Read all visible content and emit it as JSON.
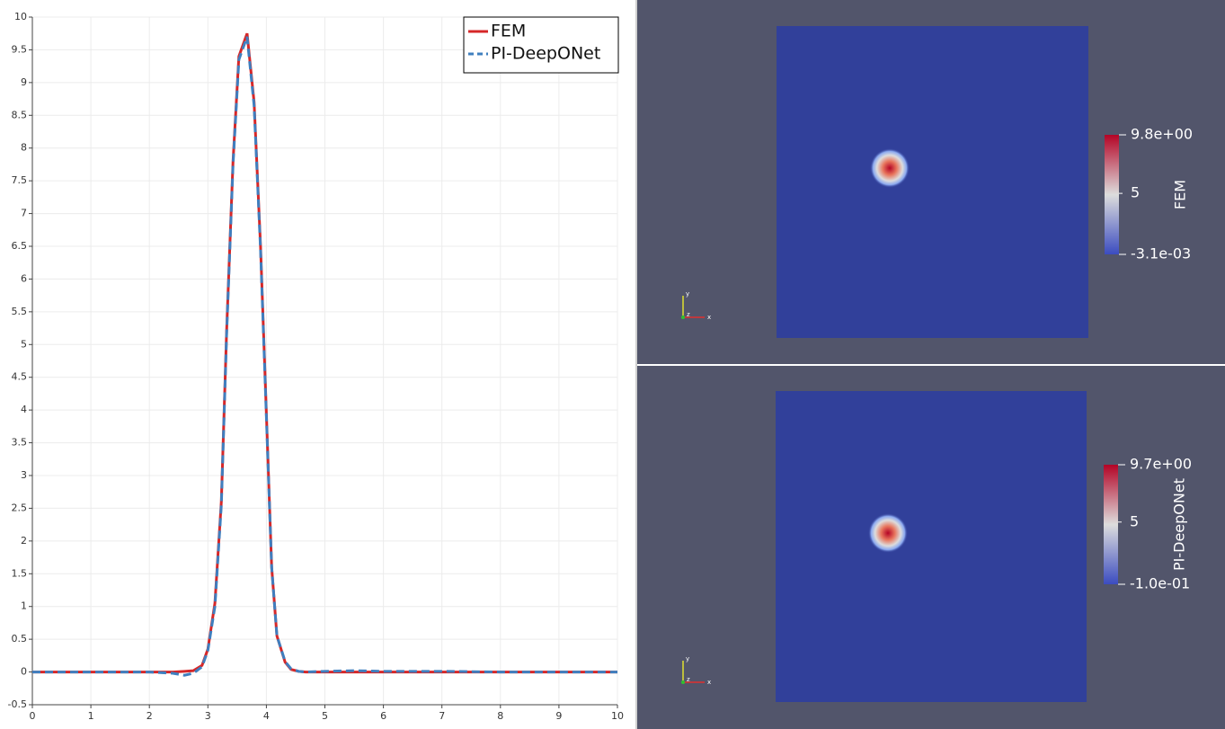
{
  "chart_data": {
    "type": "line",
    "x": [
      0,
      1,
      2,
      2.4,
      2.6,
      2.75,
      2.9,
      3.0,
      3.12,
      3.23,
      3.32,
      3.43,
      3.53,
      3.67,
      3.79,
      3.9,
      3.99,
      4.09,
      4.18,
      4.32,
      4.42,
      4.55,
      4.67,
      5,
      5.5,
      6,
      7,
      8,
      9,
      10
    ],
    "series": [
      {
        "name": "FEM",
        "color": "#d62728",
        "dash": false,
        "values": [
          0,
          0,
          0,
          0,
          0.01,
          0.02,
          0.1,
          0.35,
          1.05,
          2.6,
          5.2,
          7.8,
          9.4,
          9.75,
          8.7,
          6.5,
          4.2,
          1.6,
          0.55,
          0.15,
          0.04,
          0.01,
          0,
          0,
          0,
          0,
          0,
          0,
          0,
          0
        ]
      },
      {
        "name": "PI-DeepONet",
        "color": "#3f7fbf",
        "dash": true,
        "values": [
          0,
          0,
          0,
          -0.02,
          -0.05,
          -0.02,
          0.08,
          0.33,
          1.0,
          2.55,
          5.15,
          7.75,
          9.35,
          9.7,
          8.65,
          6.45,
          4.15,
          1.6,
          0.55,
          0.16,
          0.05,
          0.01,
          0,
          0.01,
          0.02,
          0.01,
          0.01,
          0,
          0,
          0
        ]
      }
    ],
    "xlim": [
      0,
      10
    ],
    "xticks": [
      0,
      1,
      2,
      3,
      4,
      5,
      6,
      7,
      8,
      9,
      10
    ],
    "ylim": [
      -0.5,
      10
    ],
    "yticks": [
      -0.5,
      0,
      0.5,
      1,
      1.5,
      2,
      2.5,
      3,
      3.5,
      4,
      4.5,
      5,
      5.5,
      6,
      6.5,
      7,
      7.5,
      8,
      8.5,
      9,
      9.5,
      10
    ],
    "grid": true,
    "legend": "top-right"
  },
  "views": [
    {
      "title": "FEM",
      "range": [
        {
          "value": -0.0031,
          "label": "-3.1e-03"
        },
        {
          "value": 9.8,
          "label": "9.8e+00"
        }
      ],
      "ticks": [
        5
      ]
    },
    {
      "title": "PI-DeepONet",
      "range": [
        {
          "value": -0.1,
          "label": "-1.0e-01"
        },
        {
          "value": 9.7,
          "label": "9.7e+00"
        }
      ],
      "ticks": [
        5
      ]
    }
  ],
  "axes_labels": [
    "x",
    "y",
    "z"
  ]
}
